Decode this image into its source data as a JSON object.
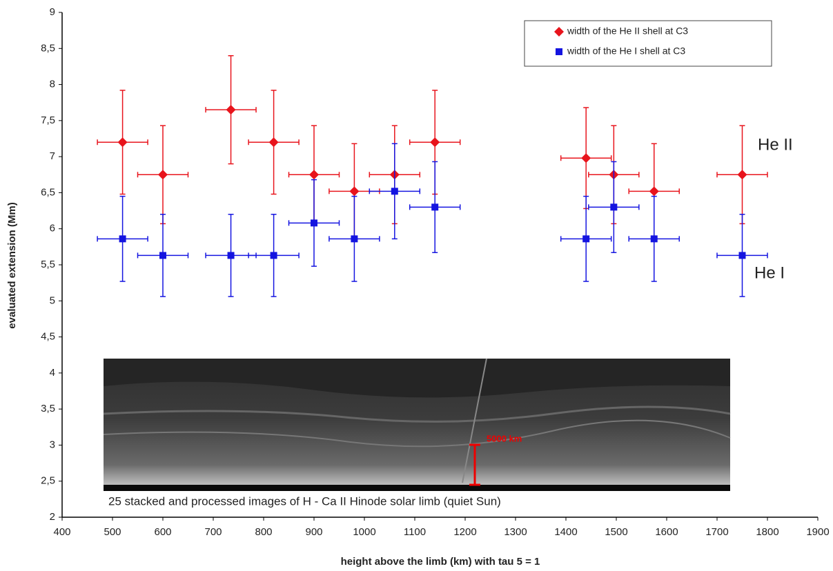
{
  "chart_data": {
    "type": "scatter",
    "x_label": "height above the limb (km) with tau 5 = 1",
    "y_label": "evaluated extension (Mm)",
    "xlim": [
      400,
      1900
    ],
    "ylim": [
      2,
      9
    ],
    "xticks": [
      400,
      500,
      600,
      700,
      800,
      900,
      1000,
      1100,
      1200,
      1300,
      1400,
      1500,
      1600,
      1700,
      1800,
      1900
    ],
    "yticks": [
      2,
      {
        "value": 2.5,
        "label": "2,5"
      },
      3,
      {
        "value": 3.5,
        "label": "3,5"
      },
      4,
      {
        "value": 4.5,
        "label": "4,5"
      },
      5,
      {
        "value": 5.5,
        "label": "5,5"
      },
      6,
      {
        "value": 6.5,
        "label": "6,5"
      },
      7,
      {
        "value": 7.5,
        "label": "7,5"
      },
      8,
      {
        "value": 8.5,
        "label": "8,5"
      },
      9
    ],
    "legend": "top-right",
    "series": [
      {
        "name": "width of the He II shell at C3",
        "color": "#e8141c",
        "marker": "diamond",
        "x": [
          520,
          600,
          735,
          820,
          900,
          980,
          1060,
          1140,
          1440,
          1495,
          1575,
          1750
        ],
        "values": [
          7.2,
          6.75,
          7.65,
          7.2,
          6.75,
          6.52,
          6.75,
          7.2,
          6.98,
          6.75,
          6.52,
          6.75
        ],
        "x_errors": [
          50,
          50,
          50,
          50,
          50,
          50,
          50,
          50,
          50,
          50,
          50,
          50
        ],
        "y_errors": [
          0.72,
          0.68,
          0.75,
          0.72,
          0.68,
          0.66,
          0.68,
          0.72,
          0.7,
          0.68,
          0.66,
          0.68
        ]
      },
      {
        "name": "width of the He I shell at C3",
        "color": "#1414e0",
        "marker": "square",
        "x": [
          520,
          600,
          735,
          820,
          900,
          980,
          1060,
          1140,
          1440,
          1495,
          1575,
          1750
        ],
        "values": [
          5.86,
          5.63,
          5.63,
          5.63,
          6.08,
          5.86,
          6.52,
          6.3,
          5.86,
          6.3,
          5.86,
          5.63
        ],
        "x_errors": [
          50,
          50,
          50,
          50,
          50,
          50,
          50,
          50,
          50,
          50,
          50,
          50
        ],
        "y_errors": [
          0.59,
          0.57,
          0.57,
          0.57,
          0.6,
          0.59,
          0.66,
          0.63,
          0.59,
          0.63,
          0.59,
          0.57
        ]
      }
    ],
    "annotations": [
      "He II",
      "He I",
      "25 stacked and processed images of H - Ca II Hinode solar limb (quiet Sun)",
      "5000 km"
    ]
  }
}
